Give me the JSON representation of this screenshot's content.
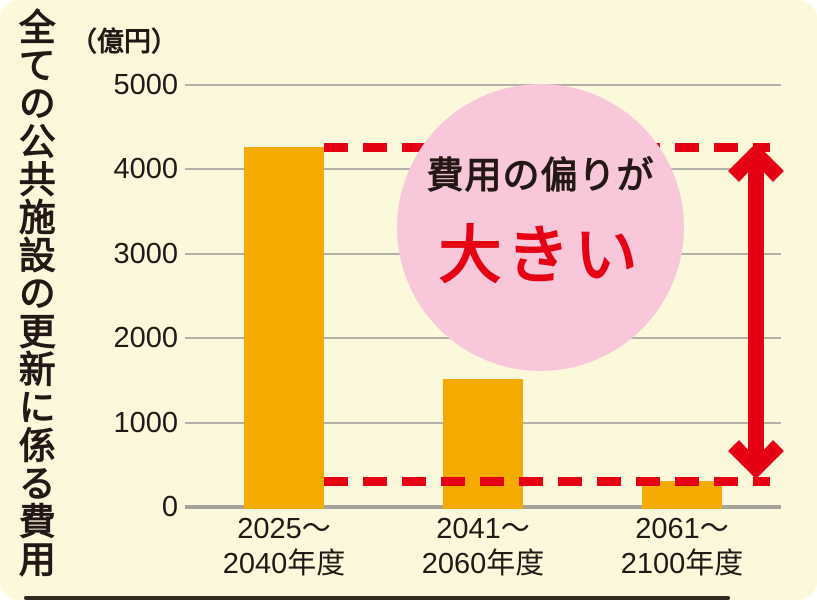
{
  "chart": {
    "vertical_title": "全ての公共施設の更新に係る費用",
    "unit_label": "（億円）"
  },
  "annotation": {
    "line1": "費用の偏りが",
    "line2": "大きい"
  },
  "chart_data": {
    "type": "bar",
    "categories": [
      "2025～2040年度",
      "2041～2060年度",
      "2061～2100年度"
    ],
    "values": [
      4270,
      1520,
      310
    ],
    "title": "",
    "xlabel": "",
    "ylabel": "（億円）",
    "axis_title_vertical": "全ての公共施設の更新に係る費用",
    "ylim": [
      0,
      5000
    ],
    "yticks": [
      0,
      1000,
      2000,
      3000,
      4000,
      5000
    ],
    "grid": true,
    "legend": false,
    "annotations": {
      "circle_text": [
        "費用の偏りが",
        "大きい"
      ],
      "dashed_levels": [
        4270,
        310
      ],
      "arrow": "vertical double-headed arrow spanning the two dashed levels"
    }
  },
  "colors": {
    "background": "#FCF8DC",
    "bar": "#F5AA00",
    "accent_red": "#E50013",
    "circle_pink": "#F8C7DA",
    "gridline": "#B4B1AB",
    "baseline": "#A5A29C",
    "text": "#231815",
    "frame_edge": "#322A1D"
  }
}
